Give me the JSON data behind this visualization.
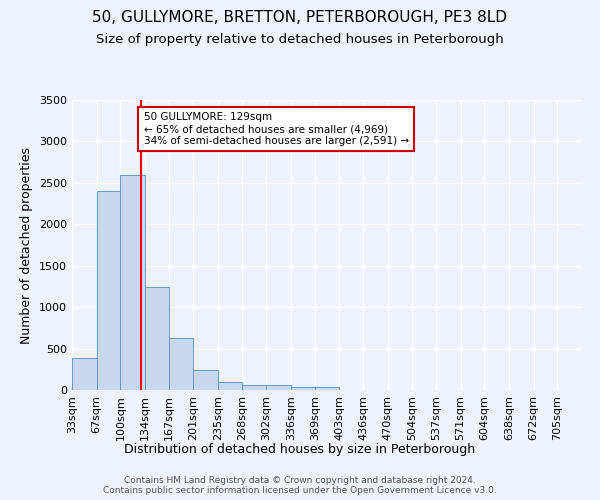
{
  "title": "50, GULLYMORE, BRETTON, PETERBOROUGH, PE3 8LD",
  "subtitle": "Size of property relative to detached houses in Peterborough",
  "xlabel": "Distribution of detached houses by size in Peterborough",
  "ylabel": "Number of detached properties",
  "footer_line1": "Contains HM Land Registry data © Crown copyright and database right 2024.",
  "footer_line2": "Contains public sector information licensed under the Open Government Licence v3.0.",
  "bin_labels": [
    "33sqm",
    "67sqm",
    "100sqm",
    "134sqm",
    "167sqm",
    "201sqm",
    "235sqm",
    "268sqm",
    "302sqm",
    "336sqm",
    "369sqm",
    "403sqm",
    "436sqm",
    "470sqm",
    "504sqm",
    "537sqm",
    "571sqm",
    "604sqm",
    "638sqm",
    "672sqm",
    "705sqm"
  ],
  "bin_edges": [
    33,
    67,
    100,
    134,
    167,
    201,
    235,
    268,
    302,
    336,
    369,
    403,
    436,
    470,
    504,
    537,
    571,
    604,
    638,
    672,
    705
  ],
  "bar_values": [
    390,
    2400,
    2600,
    1240,
    630,
    245,
    100,
    60,
    55,
    40,
    35,
    0,
    0,
    0,
    0,
    0,
    0,
    0,
    0,
    0
  ],
  "bar_color": "#c8d8ee",
  "bar_edge_color": "#6699cc",
  "red_line_x": 129,
  "annotation_text": "50 GULLYMORE: 129sqm\n← 65% of detached houses are smaller (4,969)\n34% of semi-detached houses are larger (2,591) →",
  "annotation_box_color": "#ffffff",
  "annotation_box_edge": "#cc0000",
  "ylim": [
    0,
    3500
  ],
  "yticks": [
    0,
    500,
    1000,
    1500,
    2000,
    2500,
    3000,
    3500
  ],
  "bg_color": "#eef2fb",
  "grid_color": "#ffffff",
  "title_fontsize": 11,
  "subtitle_fontsize": 9.5,
  "axis_label_fontsize": 9,
  "tick_fontsize": 8,
  "footer_fontsize": 6.5
}
